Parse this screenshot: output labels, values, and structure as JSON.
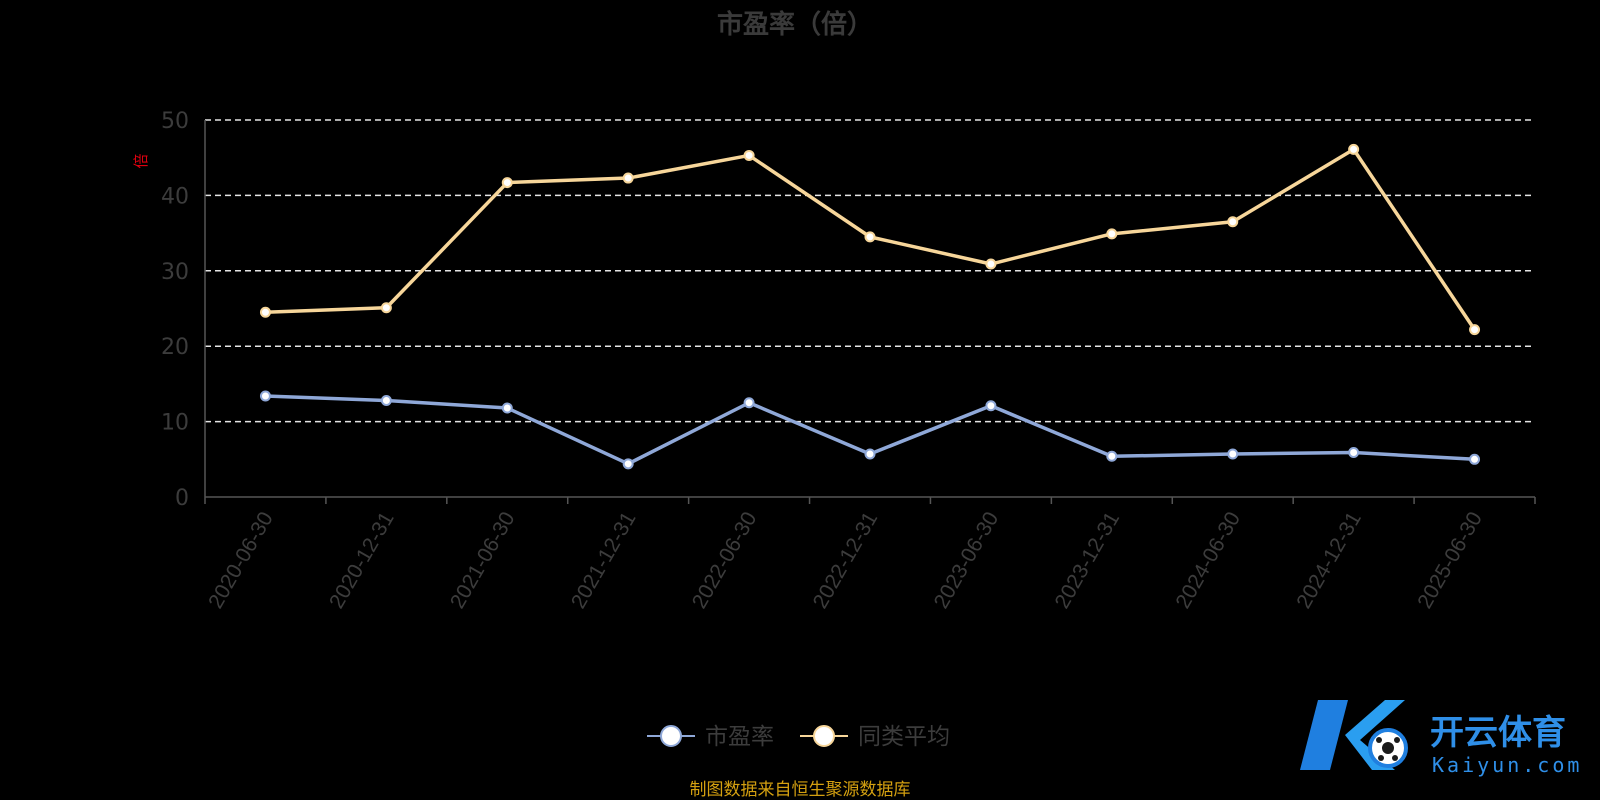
{
  "chart_data": {
    "type": "line",
    "title": "市盈率（倍）",
    "unit_label": "倍",
    "categories": [
      "2020-06-30",
      "2020-12-31",
      "2021-06-30",
      "2021-12-31",
      "2022-06-30",
      "2022-12-31",
      "2023-06-30",
      "2023-12-31",
      "2024-06-30",
      "2024-12-31",
      "2025-06-30"
    ],
    "ylim": [
      0,
      50
    ],
    "yticks": [
      0,
      10,
      20,
      30,
      40,
      50
    ],
    "grid": true,
    "legend_position": "bottom-center",
    "series": [
      {
        "name": "市盈率",
        "color": "#8fa8d8",
        "values": [
          13.4,
          12.8,
          11.8,
          4.4,
          12.5,
          5.7,
          12.1,
          5.4,
          5.7,
          5.9,
          5.0
        ]
      },
      {
        "name": "同类平均",
        "color": "#f7d69a",
        "values": [
          24.5,
          25.1,
          41.7,
          42.3,
          45.3,
          34.5,
          30.9,
          34.9,
          36.5,
          46.1,
          22.2
        ]
      }
    ]
  },
  "source_note": "制图数据来自恒生聚源数据库",
  "watermark": {
    "brand_cn": "开云体育",
    "brand_en": "Kaiyun.com",
    "color": "#2f8fe8"
  }
}
